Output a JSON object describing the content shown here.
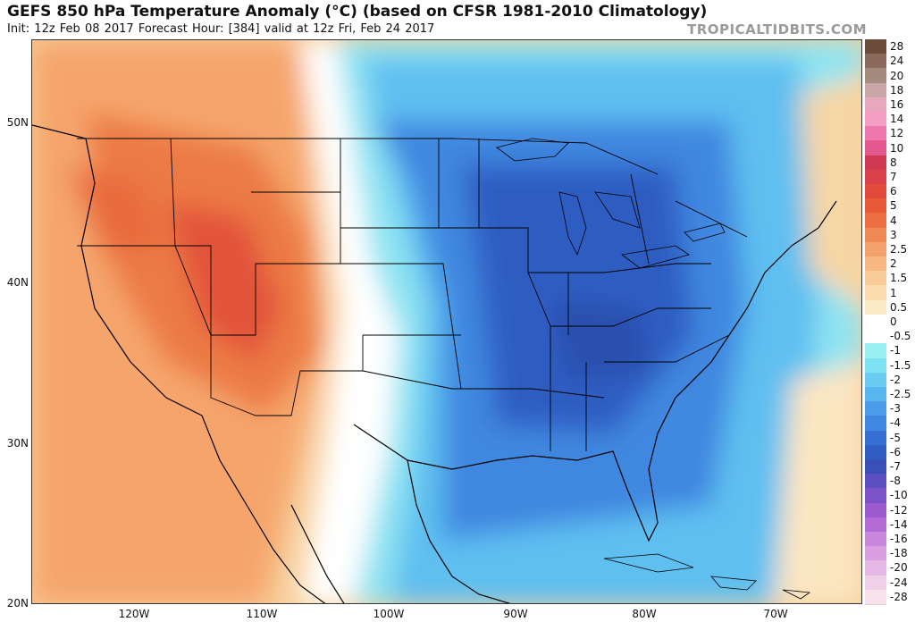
{
  "header": {
    "title": "GEFS 850 hPa Temperature Anomaly (°C) (based on CFSR 1981-2010 Climatology)",
    "subtitle": "Init: 12z Feb 08 2017   Forecast Hour: [384]   valid at 12z Fri, Feb 24 2017",
    "brand": "TROPICALTIDBITS.COM"
  },
  "map": {
    "lat_labels": [
      "50N",
      "40N",
      "30N",
      "20N"
    ],
    "lon_labels": [
      "120W",
      "110W",
      "100W",
      "90W",
      "80W",
      "70W"
    ]
  },
  "colorbar": {
    "levels": [
      {
        "label": "28",
        "color": "#6b4b3a"
      },
      {
        "label": "24",
        "color": "#8a6a5a"
      },
      {
        "label": "20",
        "color": "#a58a7e"
      },
      {
        "label": "18",
        "color": "#c8a6a6"
      },
      {
        "label": "16",
        "color": "#e7a8bd"
      },
      {
        "label": "14",
        "color": "#f59dc2"
      },
      {
        "label": "12",
        "color": "#ee77ad"
      },
      {
        "label": "10",
        "color": "#e3588f"
      },
      {
        "label": "8",
        "color": "#cf3a52"
      },
      {
        "label": "7",
        "color": "#d9404a"
      },
      {
        "label": "6",
        "color": "#e24a3c"
      },
      {
        "label": "5",
        "color": "#e65a37"
      },
      {
        "label": "4",
        "color": "#eb6f40"
      },
      {
        "label": "3",
        "color": "#f08a55"
      },
      {
        "label": "2.5",
        "color": "#f4a26c"
      },
      {
        "label": "2",
        "color": "#f7b882"
      },
      {
        "label": "1.5",
        "color": "#f8cb98"
      },
      {
        "label": "1",
        "color": "#fadcae"
      },
      {
        "label": "0.5",
        "color": "#fbecc8"
      },
      {
        "label": "0",
        "color": "#ffffff"
      },
      {
        "label": "-0.5",
        "color": "#ffffff"
      },
      {
        "label": "-1",
        "color": "#9af0f0"
      },
      {
        "label": "-1.5",
        "color": "#7ee2f2"
      },
      {
        "label": "-2",
        "color": "#68cdf0"
      },
      {
        "label": "-2.5",
        "color": "#58b6ee"
      },
      {
        "label": "-3",
        "color": "#4b9de9"
      },
      {
        "label": "-4",
        "color": "#3f87e0"
      },
      {
        "label": "-5",
        "color": "#3570d2"
      },
      {
        "label": "-6",
        "color": "#2f5dc2"
      },
      {
        "label": "-7",
        "color": "#3a4fb8"
      },
      {
        "label": "-8",
        "color": "#5a4ec0"
      },
      {
        "label": "-10",
        "color": "#7b52c7"
      },
      {
        "label": "-12",
        "color": "#9b5bcf"
      },
      {
        "label": "-14",
        "color": "#b46bd6"
      },
      {
        "label": "-16",
        "color": "#c987db"
      },
      {
        "label": "-18",
        "color": "#d99fe0"
      },
      {
        "label": "-20",
        "color": "#e6b8e6"
      },
      {
        "label": "-24",
        "color": "#f0cfe8"
      },
      {
        "label": "-28",
        "color": "#f7e2ec"
      }
    ]
  }
}
